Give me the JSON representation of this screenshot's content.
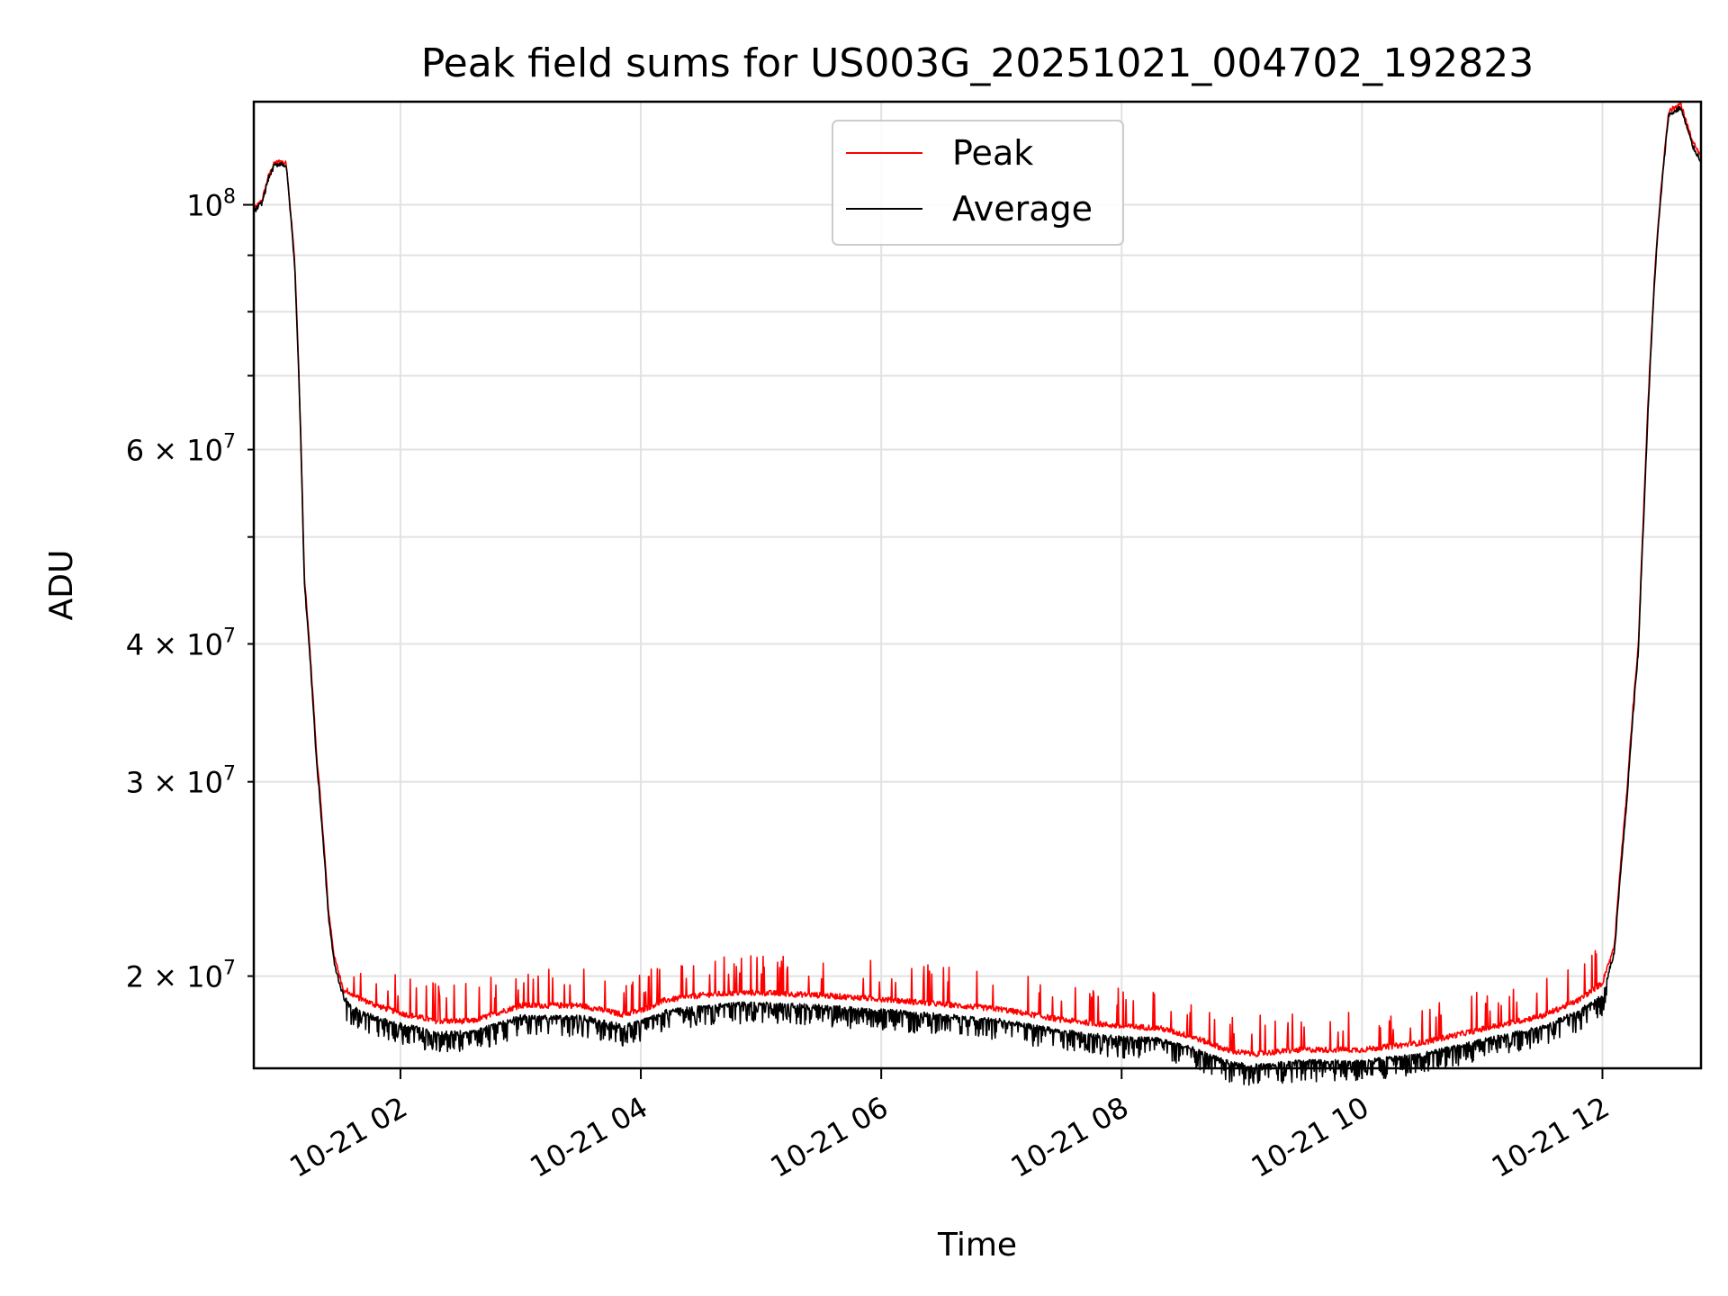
{
  "chart_data": {
    "type": "line",
    "title": "Peak field sums for US003G_20251021_004702_192823",
    "xlabel": "Time",
    "ylabel": "ADU",
    "yscale": "log",
    "ylim": [
      16500000,
      124000000
    ],
    "xlim": [
      0.78,
      12.82
    ],
    "grid": true,
    "legend_position": "top-center",
    "colors": {
      "peak": "#ff0000",
      "average": "#000000",
      "grid": "#e2e2e2"
    },
    "x_ticks": [
      {
        "value": 2,
        "label": "10-21 02"
      },
      {
        "value": 4,
        "label": "10-21 04"
      },
      {
        "value": 6,
        "label": "10-21 06"
      },
      {
        "value": 8,
        "label": "10-21 08"
      },
      {
        "value": 10,
        "label": "10-21 10"
      },
      {
        "value": 12,
        "label": "10-21 12"
      }
    ],
    "y_major_ticks": [
      {
        "value": 100000000,
        "base": "10",
        "exp": "8"
      }
    ],
    "y_minor_ticks": [
      {
        "value": 20000000,
        "mant": "2",
        "base": "10",
        "exp": "7"
      },
      {
        "value": 30000000,
        "mant": "3",
        "base": "10",
        "exp": "7"
      },
      {
        "value": 40000000,
        "mant": "4",
        "base": "10",
        "exp": "7"
      },
      {
        "value": 60000000,
        "mant": "6",
        "base": "10",
        "exp": "7"
      }
    ],
    "y_minor_unlabeled": [
      50000000,
      70000000,
      80000000,
      90000000
    ],
    "x_hours_note": "x values are hours on 2025-10-21",
    "series": [
      {
        "name": "Peak",
        "key": "peak",
        "x": [
          0.78,
          0.85,
          0.9,
          0.95,
          1.0,
          1.05,
          1.12,
          1.2,
          1.3,
          1.4,
          1.45,
          1.5,
          1.53,
          1.6,
          1.8,
          2.0,
          2.3,
          2.6,
          3.0,
          3.5,
          3.85,
          4.0,
          4.2,
          4.5,
          4.8,
          5.0,
          5.5,
          6.0,
          6.5,
          7.0,
          7.5,
          8.0,
          8.3,
          8.6,
          8.9,
          9.1,
          9.5,
          10.0,
          10.5,
          11.0,
          11.5,
          11.8,
          12.0,
          12.1,
          12.2,
          12.3,
          12.35,
          12.45,
          12.55,
          12.65,
          12.75,
          12.82
        ],
        "y": [
          99000000,
          101000000,
          106000000,
          109000000,
          109500000,
          109000000,
          89000000,
          46000000,
          32000000,
          23000000,
          20800000,
          19900000,
          19400000,
          19100000,
          18700000,
          18400000,
          18100000,
          18100000,
          18700000,
          18700000,
          18350000,
          18500000,
          18900000,
          19100000,
          19200000,
          19200000,
          19100000,
          18950000,
          18750000,
          18550000,
          18150000,
          17900000,
          17850000,
          17500000,
          17000000,
          16900000,
          17050000,
          17050000,
          17300000,
          17800000,
          18300000,
          18900000,
          19600000,
          21300000,
          29000000,
          40000000,
          55000000,
          92000000,
          121500000,
          123500000,
          114000000,
          110500000
        ]
      },
      {
        "name": "Average",
        "key": "average",
        "x": [
          0.78,
          0.85,
          0.9,
          0.95,
          1.0,
          1.05,
          1.12,
          1.2,
          1.3,
          1.4,
          1.45,
          1.5,
          1.53,
          1.6,
          1.8,
          2.0,
          2.3,
          2.6,
          3.0,
          3.5,
          3.85,
          4.0,
          4.2,
          4.5,
          4.8,
          5.0,
          5.5,
          6.0,
          6.5,
          7.0,
          7.5,
          8.0,
          8.3,
          8.6,
          8.9,
          9.1,
          9.5,
          10.0,
          10.5,
          11.0,
          11.5,
          11.8,
          12.0,
          12.1,
          12.2,
          12.3,
          12.35,
          12.45,
          12.55,
          12.65,
          12.75,
          12.82
        ],
        "y": [
          98500000,
          100500000,
          105500000,
          108500000,
          109000000,
          108500000,
          88000000,
          45500000,
          31500000,
          22700000,
          20500000,
          19600000,
          19100000,
          18800000,
          18400000,
          18150000,
          17850000,
          17850000,
          18450000,
          18450000,
          18100000,
          18250000,
          18650000,
          18850000,
          18950000,
          18950000,
          18850000,
          18700000,
          18500000,
          18300000,
          17900000,
          17650000,
          17600000,
          17250000,
          16750000,
          16650000,
          16800000,
          16800000,
          17050000,
          17550000,
          18050000,
          18650000,
          19300000,
          21000000,
          28500000,
          39500000,
          54000000,
          91000000,
          120500000,
          122500000,
          113000000,
          109500000
        ]
      }
    ]
  }
}
